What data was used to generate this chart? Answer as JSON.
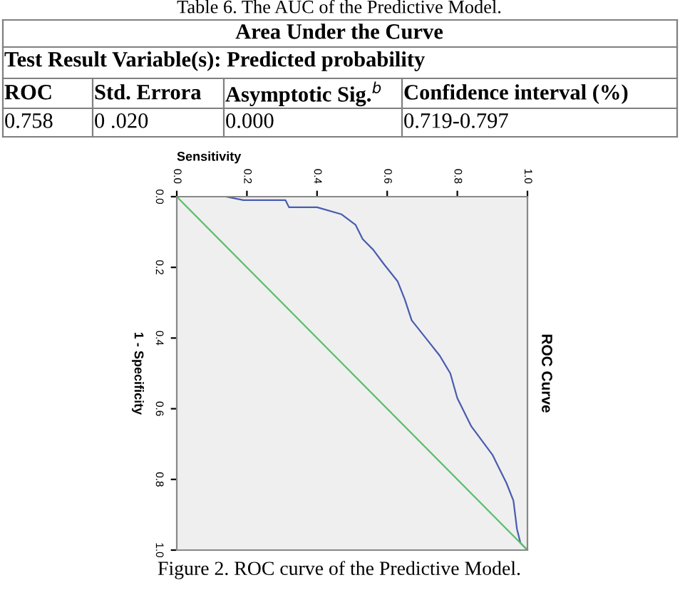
{
  "chart_data": {
    "type": "line",
    "title": "ROC Curve",
    "xlabel": "Sensitivity",
    "ylabel": "1 - Specificity",
    "annotations": [
      "Table 6. The AUC of the Predictive Model.",
      "Area Under the Curve",
      "Test Result Variable(s): Predicted probability",
      "ROC",
      "Std. Errora",
      "Asymptotic Sig.$^{b}$",
      "Confidence interval (%)",
      "0.758",
      "0 .020",
      "0.000",
      "0.719-0.797",
      "Figure 2. ROC curve of the Predictive Model."
    ],
    "series": [
      {
        "color": "#4a5cb0",
        "x": [
          0,
          0.14,
          0.19,
          0.31,
          0.32,
          0.4,
          0.47,
          0.51,
          0.53,
          0.56,
          0.59,
          0.63,
          0.65,
          0.67,
          0.71,
          0.75,
          0.78,
          0.8,
          0.84,
          0.9,
          0.92,
          0.94,
          0.96,
          0.97,
          0.98,
          1
        ],
        "values": [
          0,
          0,
          0.01,
          0.01,
          0.03,
          0.03,
          0.05,
          0.08,
          0.12,
          0.15,
          0.19,
          0.24,
          0.29,
          0.35,
          0.4,
          0.45,
          0.5,
          0.57,
          0.65,
          0.73,
          0.77,
          0.81,
          0.86,
          0.94,
          0.98,
          1
        ]
      },
      {
        "color": "#5cbf6a",
        "x": [
          0,
          1
        ],
        "values": [
          0,
          1
        ]
      }
    ],
    "xlim": [
      0,
      1
    ],
    "ylim": [
      1,
      0
    ],
    "xticks": [
      {
        "value": 0,
        "label": "0.0"
      },
      {
        "value": 0.2,
        "label": "0.2"
      },
      {
        "value": 0.4,
        "label": "0.4"
      },
      {
        "value": 0.6,
        "label": "0.6"
      },
      {
        "value": 0.8,
        "label": "0.8"
      },
      {
        "value": 1,
        "label": "1.0"
      }
    ],
    "yticks": [
      {
        "value": 0,
        "label": "0.0"
      },
      {
        "value": 0.2,
        "label": "0.2"
      },
      {
        "value": 0.4,
        "label": "0.4"
      },
      {
        "value": 0.6,
        "label": "0.6"
      },
      {
        "value": 0.8,
        "label": "0.8"
      },
      {
        "value": 1,
        "label": "1.0"
      }
    ],
    "grid": false,
    "legend": false,
    "marker": "none",
    "line_style": "solid"
  }
}
